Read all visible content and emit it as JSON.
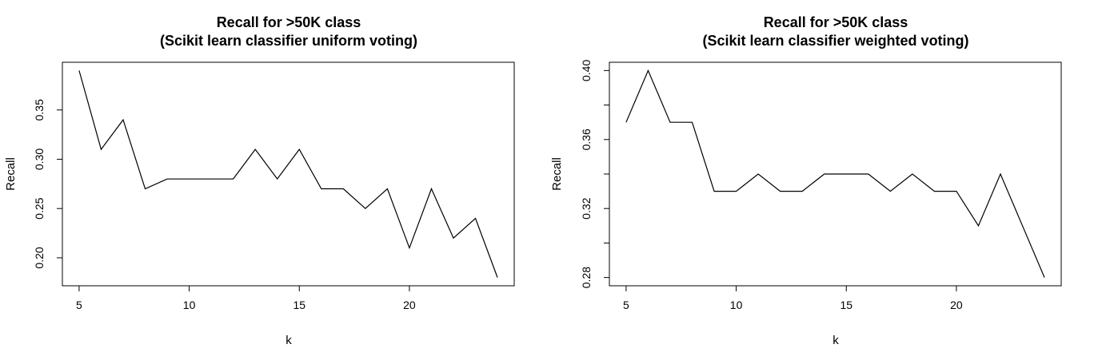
{
  "chart_data": [
    {
      "type": "line",
      "title": "Recall for >50K class",
      "subtitle": "(Scikit learn classifier uniform voting)",
      "xlabel": "k",
      "ylabel": "Recall",
      "x": [
        5,
        6,
        7,
        8,
        9,
        10,
        11,
        12,
        13,
        14,
        15,
        16,
        17,
        18,
        19,
        20,
        21,
        22,
        23,
        24
      ],
      "series": [
        {
          "values": [
            0.39,
            0.31,
            0.34,
            0.27,
            0.28,
            0.28,
            0.28,
            0.28,
            0.31,
            0.28,
            0.31,
            0.27,
            0.27,
            0.25,
            0.27,
            0.21,
            0.27,
            0.22,
            0.24,
            0.18
          ]
        }
      ],
      "xlim": [
        4.24,
        24.76
      ],
      "ylim": [
        0.1716,
        0.3984
      ],
      "xticks": [
        5,
        10,
        15,
        20
      ],
      "xtick_labels": [
        "5",
        "10",
        "15",
        "20"
      ],
      "yticks": [
        0.2,
        0.25,
        0.3,
        0.35
      ],
      "ytick_labels": [
        "0.20",
        "0.25",
        "0.30",
        "0.35"
      ],
      "grid": false,
      "line_color": "#000000"
    },
    {
      "type": "line",
      "title": "Recall for >50K class",
      "subtitle": "(Scikit learn classifier weighted voting)",
      "xlabel": "k",
      "ylabel": "Recall",
      "x": [
        5,
        6,
        7,
        8,
        9,
        10,
        11,
        12,
        13,
        14,
        15,
        16,
        17,
        18,
        19,
        20,
        21,
        22,
        23,
        24
      ],
      "series": [
        {
          "values": [
            0.37,
            0.4,
            0.37,
            0.37,
            0.33,
            0.33,
            0.34,
            0.33,
            0.33,
            0.34,
            0.34,
            0.34,
            0.33,
            0.34,
            0.33,
            0.33,
            0.31,
            0.34,
            0.31,
            0.28
          ]
        }
      ],
      "xlim": [
        4.24,
        24.76
      ],
      "ylim": [
        0.2752,
        0.4048
      ],
      "xticks": [
        5,
        10,
        15,
        20
      ],
      "xtick_labels": [
        "5",
        "10",
        "15",
        "20"
      ],
      "yticks": [
        0.28,
        0.3,
        0.32,
        0.34,
        0.36,
        0.38,
        0.4
      ],
      "ytick_labels": [
        "0.28",
        "",
        "0.32",
        "",
        "0.36",
        "",
        "0.40"
      ],
      "grid": false,
      "line_color": "#000000"
    }
  ]
}
